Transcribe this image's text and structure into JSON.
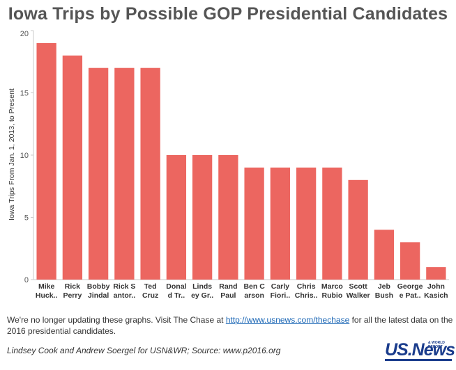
{
  "page": {
    "title": "Iowa Trips by Possible GOP Presidential Candidates",
    "note_before_link": "We're no longer updating these graphs. Visit The Chase at ",
    "note_link": "http://www.usnews.com/thechase",
    "note_after_link": " for all the latest data on the 2016 presidential candidates.",
    "source": "Lindsey Cook and Andrew Soergel for USN&WR; Source: www.p2016.org",
    "logo_text": "US.News",
    "logo_small": "& WORLD REPORT"
  },
  "colors": {
    "bar": "#ec6660",
    "axis": "#c8c8c8"
  },
  "chart_data": {
    "type": "bar",
    "title": "Iowa Trips by Possible GOP Presidential Candidates",
    "xlabel": "",
    "ylabel": "Iowa Trips From Jan. 1, 2013, to Present",
    "ylim": [
      0,
      20
    ],
    "yticks": [
      0,
      5,
      10,
      15,
      20
    ],
    "grid": false,
    "categories": [
      [
        "Mike",
        "Huck.."
      ],
      [
        "Rick",
        "Perry"
      ],
      [
        "Bobby",
        "Jindal"
      ],
      [
        "Rick S",
        "antor.."
      ],
      [
        "Ted",
        "Cruz"
      ],
      [
        "Donal",
        "d Tr.."
      ],
      [
        "Linds",
        "ey Gr.."
      ],
      [
        "Rand",
        "Paul"
      ],
      [
        "Ben C",
        "arson"
      ],
      [
        "Carly",
        "Fiori.."
      ],
      [
        "Chris",
        "Chris.."
      ],
      [
        "Marco",
        "Rubio"
      ],
      [
        "Scott",
        "Walker"
      ],
      [
        "Jeb",
        "Bush"
      ],
      [
        "George",
        "e Pat.."
      ],
      [
        "John",
        "Kasich"
      ]
    ],
    "values": [
      19,
      18,
      17,
      17,
      17,
      10,
      10,
      10,
      9,
      9,
      9,
      9,
      8,
      4,
      3,
      1
    ]
  }
}
